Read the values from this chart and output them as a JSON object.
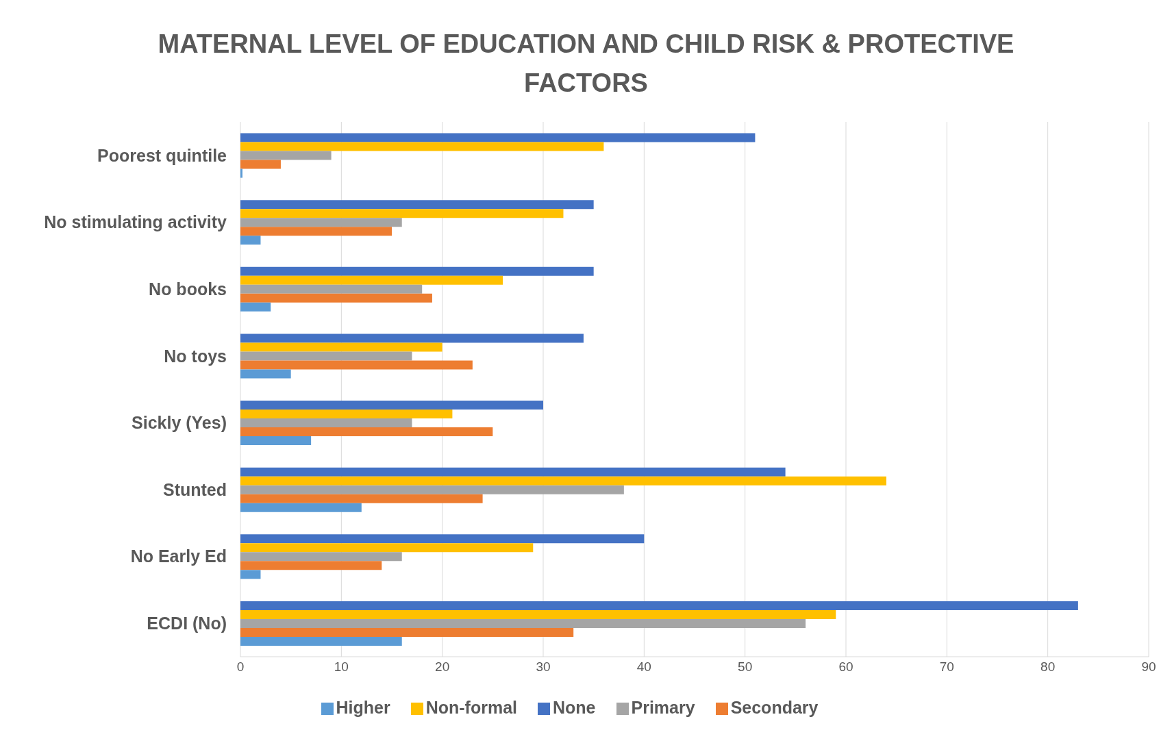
{
  "chart_data": {
    "type": "bar",
    "orientation": "horizontal",
    "title": "MATERNAL LEVEL OF EDUCATION AND CHILD RISK & PROTECTIVE FACTORS",
    "categories": [
      "Poorest quintile",
      "No stimulating activity",
      "No books",
      "No toys",
      "Sickly (Yes)",
      "Stunted",
      "No Early Ed",
      "ECDI (No)"
    ],
    "series": [
      {
        "name": "None",
        "color": "#4472c4",
        "values": [
          51,
          35,
          35,
          34,
          30,
          54,
          40,
          83
        ]
      },
      {
        "name": "Non-formal",
        "color": "#ffc000",
        "values": [
          36,
          32,
          26,
          20,
          21,
          64,
          29,
          59
        ]
      },
      {
        "name": "Primary",
        "color": "#a5a5a5",
        "values": [
          9,
          16,
          18,
          17,
          17,
          38,
          16,
          56
        ]
      },
      {
        "name": "Secondary",
        "color": "#ed7d31",
        "values": [
          4,
          15,
          19,
          23,
          25,
          24,
          14,
          33
        ]
      },
      {
        "name": "Higher",
        "color": "#5b9bd5",
        "values": [
          0.2,
          2,
          3,
          5,
          7,
          12,
          2,
          16
        ]
      }
    ],
    "xlim": [
      0,
      90
    ],
    "xticks": [
      0,
      10,
      20,
      30,
      40,
      50,
      60,
      70,
      80,
      90
    ],
    "grid": "x",
    "legend": "bottom"
  }
}
